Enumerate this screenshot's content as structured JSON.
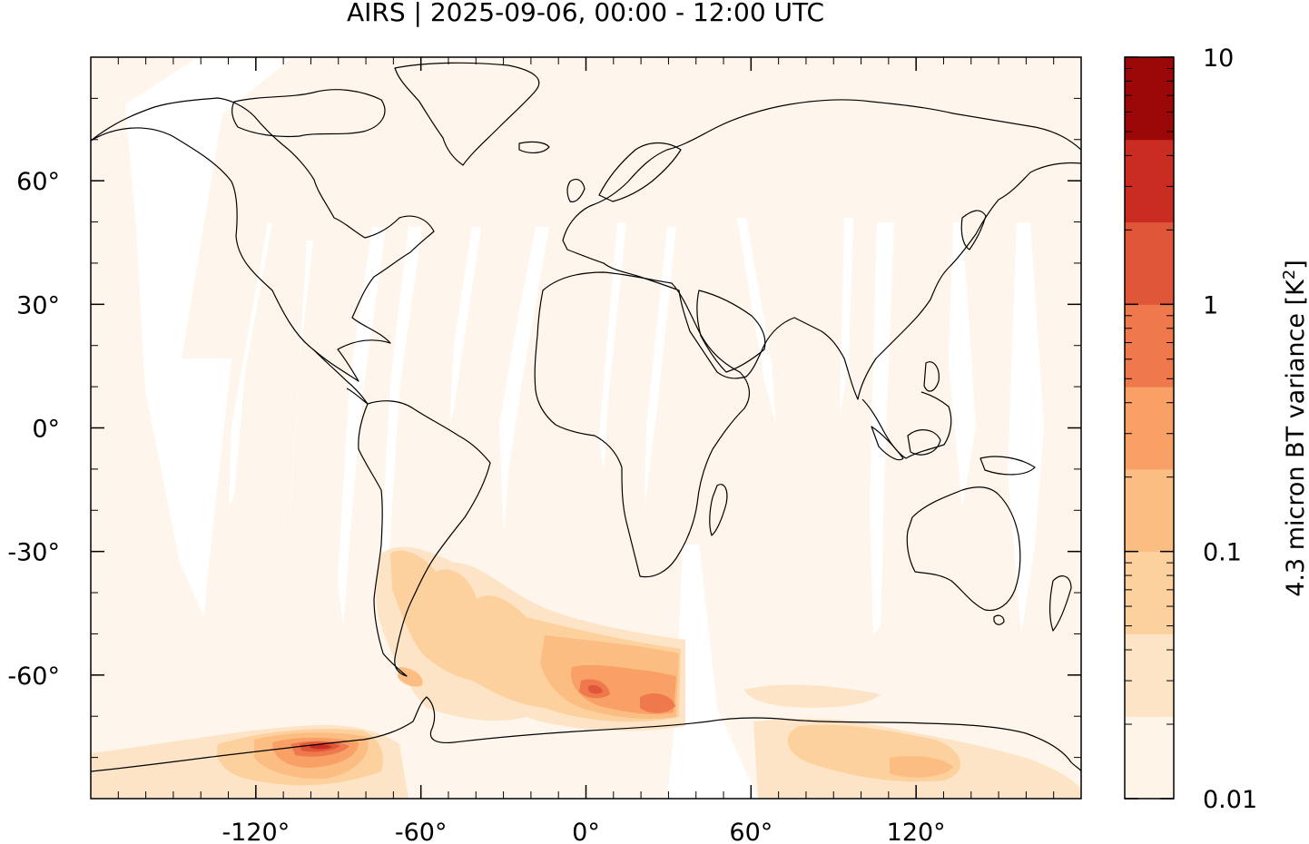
{
  "title": "AIRS | 2025-09-06, 00:00 - 12:00 UTC",
  "map": {
    "projection": "equirectangular",
    "lon_range": [
      -180,
      180
    ],
    "lat_range": [
      -90,
      90
    ],
    "lat_ticks": [
      {
        "value": 60,
        "label": "60°"
      },
      {
        "value": 30,
        "label": "30°"
      },
      {
        "value": 0,
        "label": "0°"
      },
      {
        "value": -30,
        "label": "-30°"
      },
      {
        "value": -60,
        "label": "-60°"
      }
    ],
    "lon_ticks": [
      {
        "value": -120,
        "label": "-120°"
      },
      {
        "value": -60,
        "label": "-60°"
      },
      {
        "value": 0,
        "label": "0°"
      },
      {
        "value": 60,
        "label": "60°"
      },
      {
        "value": 120,
        "label": "120°"
      }
    ],
    "background_color": "#fef6ec",
    "coastline_color": "#000000",
    "swath_gap_color": "#ffffff"
  },
  "colorbar": {
    "label": "4.3 micron BT variance [K",
    "label_sup": "2",
    "label_end": "]",
    "scale": "log",
    "range": [
      0.01,
      10
    ],
    "tick_labels": [
      {
        "value": 10,
        "label": "10"
      },
      {
        "value": 1,
        "label": "1"
      },
      {
        "value": 0.1,
        "label": "0.1"
      },
      {
        "value": 0.01,
        "label": "0.01"
      }
    ],
    "colors": [
      "#fef4e8",
      "#fde4c6",
      "#fcd19e",
      "#fcbd82",
      "#f9a066",
      "#f0784d",
      "#e05638",
      "#cb2c22",
      "#9c0807"
    ]
  }
}
